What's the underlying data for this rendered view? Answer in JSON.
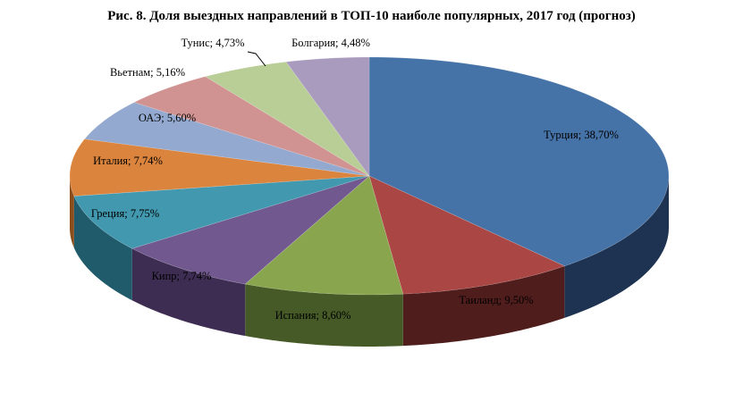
{
  "chart_data": {
    "type": "pie",
    "title": "Рис. 8. Доля выездных направлений в ТОП-10 наиболе популярных, 2017 год (прогноз)",
    "slices": [
      {
        "name": "Турция",
        "value": 38.7,
        "label": "Турция; 38,70%",
        "color": "#4572A7",
        "side": "#1E3352"
      },
      {
        "name": "Таиланд",
        "value": 9.5,
        "label": "Таиланд; 9,50%",
        "color": "#AA4643",
        "side": "#4F1D1C"
      },
      {
        "name": "Испания",
        "value": 8.6,
        "label": "Испания; 8,60%",
        "color": "#89A54E",
        "side": "#455A26"
      },
      {
        "name": "Кипр",
        "value": 7.74,
        "label": "Кипр; 7,74%",
        "color": "#71588F",
        "side": "#3D2D52"
      },
      {
        "name": "Греция",
        "value": 7.75,
        "label": "Греция; 7,75%",
        "color": "#4198AF",
        "side": "#1F5B6B"
      },
      {
        "name": "Италия",
        "value": 7.74,
        "label": "Италия; 7,74%",
        "color": "#DB843D",
        "side": "#8A4D1C"
      },
      {
        "name": "ОАЭ",
        "value": 5.6,
        "label": "ОАЭ; 5,60%",
        "color": "#93A9CF",
        "side": "#52698E"
      },
      {
        "name": "Вьетнам",
        "value": 5.16,
        "label": "Вьетнам; 5,16%",
        "color": "#D19392",
        "side": "#8A5554"
      },
      {
        "name": "Тунис",
        "value": 4.73,
        "label": "Тунис; 4,73%",
        "color": "#B9CD96",
        "side": "#76875A"
      },
      {
        "name": "Болгария",
        "value": 4.48,
        "label": "Болгария; 4,48%",
        "color": "#A99BBD",
        "side": "#6A5D7D"
      }
    ]
  }
}
